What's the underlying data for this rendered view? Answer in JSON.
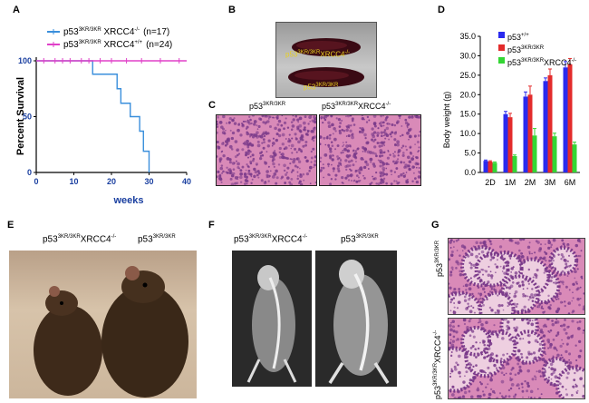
{
  "panels": {
    "a": "A",
    "b": "B",
    "c": "C",
    "d": "D",
    "e": "E",
    "f": "F",
    "g": "G"
  },
  "genotypes": {
    "p53_base": "p53",
    "sup_3kr": "3KR/3KR",
    "sup_wt": "+/+",
    "sup_ko": "-/-",
    "sup_3kr_short": "3KR",
    "xrcc4": "XRCC4"
  },
  "survival": {
    "ylabel": "Percent Survival",
    "xlabel": "weeks",
    "legend": [
      {
        "prefix": "p53",
        "sup1": "3KR/3KR",
        "mid": " XRCC4",
        "sup2": "-/-",
        "n": "(n=17)",
        "color": "#3a8fdc"
      },
      {
        "prefix": "p53",
        "sup1": "3KR/3KR",
        "mid": " XRCC4",
        "sup2": "+/+",
        "n": "(n=24)",
        "color": "#e040c8"
      }
    ],
    "xticks": [
      "0",
      "10",
      "20",
      "30",
      "40"
    ],
    "yticks": [
      "0",
      "50",
      "100"
    ]
  },
  "chart_data": [
    {
      "type": "line",
      "xlim": [
        0,
        40
      ],
      "ylim": [
        0,
        100
      ],
      "xlabel": "weeks",
      "ylabel": "Percent Survival",
      "series": [
        {
          "name": "p53 3KR/3KR XRCC4 -/- (n=17)",
          "color": "#3a8fdc",
          "x": [
            0,
            15,
            15,
            21.5,
            21.5,
            22.5,
            22.5,
            25,
            25,
            27.5,
            27.5,
            28.5,
            28.5,
            30,
            30
          ],
          "y": [
            100,
            100,
            88,
            88,
            75,
            75,
            62,
            62,
            50,
            50,
            37,
            37,
            19,
            19,
            0
          ]
        },
        {
          "name": "p53 3KR/3KR XRCC4 +/+ (n=24)",
          "color": "#e040c8",
          "x": [
            0,
            40
          ],
          "y": [
            100,
            100
          ],
          "censor_x": [
            2,
            5,
            7,
            9,
            12,
            14,
            17,
            20,
            24,
            28,
            33,
            38
          ]
        }
      ]
    },
    {
      "type": "bar",
      "ylabel": "Body weight (g)",
      "ylim": [
        0,
        35
      ],
      "categories": [
        "2D",
        "1M",
        "2M",
        "3M",
        "6M"
      ],
      "series": [
        {
          "name": "p53 +/+",
          "color": "#2a2aee",
          "values": [
            3.0,
            15.0,
            19.5,
            23.5,
            27.0
          ],
          "errors": [
            0.2,
            0.7,
            1.2,
            0.8,
            1.5
          ]
        },
        {
          "name": "p53 3KR/3KR",
          "color": "#e32b2b",
          "values": [
            2.8,
            14.2,
            20.0,
            25.0,
            27.8
          ],
          "errors": [
            0.2,
            1.0,
            2.2,
            1.6,
            1.5
          ]
        },
        {
          "name": "p53 3KR/3KR XRCC4 -/-",
          "color": "#33d633",
          "values": [
            2.5,
            4.2,
            9.5,
            9.3,
            7.2
          ],
          "errors": [
            0.2,
            0.3,
            1.8,
            0.8,
            0.6
          ]
        }
      ],
      "yticks": [
        "0.0",
        "5.0",
        "10.0",
        "15.0",
        "20.0",
        "25.0",
        "30.0",
        "35.0"
      ]
    }
  ],
  "colors": {
    "blue": "#3a8fdc",
    "magenta": "#e040c8",
    "wt_bar": "#2a2aee",
    "kr_bar": "#e32b2b",
    "ko_bar": "#33d633",
    "he_pink": "#d98ab8",
    "he_purple": "#7a3a8a"
  }
}
